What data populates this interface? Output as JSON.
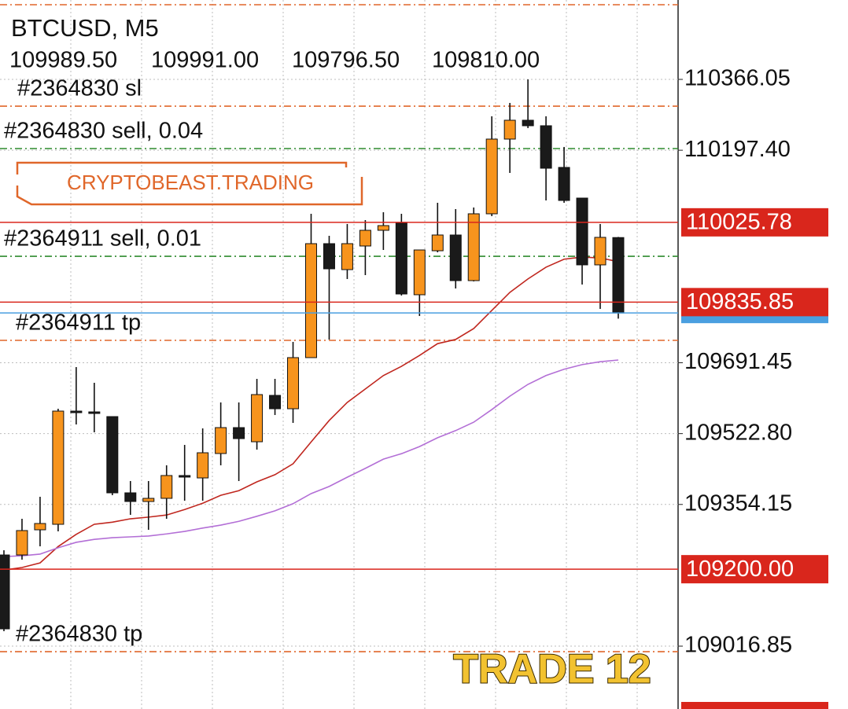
{
  "chart_data": {
    "type": "candlestick",
    "title": "BTCUSD, M5",
    "info": [
      "109989.50",
      "109991.00",
      "109796.50",
      "109810.00"
    ],
    "ylim": [
      108867.2,
      110555.05
    ],
    "yticks": [
      110366.05,
      {
        "value": 110197.4,
        "label": "110197.40"
      },
      109691.45,
      {
        "value": 109522.8,
        "label": "109522.80"
      },
      109354.15,
      109016.85
    ],
    "up_color": "#f7941d",
    "down_color": "#1a1a1a",
    "open": [
      109233.9,
      109233.9,
      109293.8,
      109306.9,
      109576.4,
      109574.5,
      109563.3,
      109381.8,
      109361.2,
      109368.7,
      109423.0,
      109417.3,
      109475.4,
      109537.1,
      109503.4,
      109613.8,
      109582.0,
      109703.7,
      109975.0,
      109913.2,
      109969.4,
      110006.8,
      110023.7,
      109853.4,
      109958.1,
      109995.6,
      109887.0,
      110046.1,
      110223.9,
      110268.8,
      110255.7,
      110156.5,
      110083.5,
      109924.5,
      109989.5
    ],
    "high": [
      109245.1,
      109320.0,
      109372.4,
      109582.0,
      109681.2,
      109643.8,
      109563.3,
      109409.9,
      109409.9,
      109447.3,
      109495.9,
      109535.2,
      109597.0,
      109597.0,
      109653.1,
      109653.1,
      109741.1,
      110046.1,
      109993.7,
      110021.8,
      110031.1,
      110049.8,
      110046.1,
      109960.0,
      110072.3,
      110057.3,
      110061.1,
      110278.2,
      110310.0,
      110366.0,
      110278.2,
      110205.2,
      110083.5,
      110021.8,
      109991.0
    ],
    "low": [
      109052.4,
      109222.7,
      109254.5,
      109290.1,
      109544.6,
      109525.9,
      109376.2,
      109329.4,
      109293.8,
      109320.0,
      109363.1,
      109363.1,
      109447.3,
      109409.9,
      109484.7,
      109567.1,
      109548.3,
      109703.7,
      109746.7,
      109890.8,
      109900.1,
      109960.0,
      109851.5,
      109802.8,
      109954.4,
      109868.3,
      109885.2,
      110040.5,
      110143.4,
      110250.1,
      110077.9,
      110072.3,
      109877.7,
      109819.7,
      109796.5
    ],
    "close": [
      109058.0,
      109292.0,
      109308.8,
      109576.4,
      109574.5,
      109572.7,
      109381.8,
      109361.2,
      109368.7,
      109423.0,
      109421.1,
      109477.2,
      109537.1,
      109510.9,
      109615.7,
      109582.0,
      109703.7,
      109975.0,
      109915.1,
      109975.0,
      110006.8,
      110018.0,
      109855.2,
      109960.0,
      109995.6,
      109887.0,
      110046.1,
      110223.9,
      110268.8,
      110255.7,
      110154.6,
      110077.9,
      109924.5,
      109990.0,
      109810.0
    ],
    "indicators": [
      {
        "color": "#c0271f",
        "values": [
          109198,
          109204,
          109215,
          109254,
          109283,
          109307,
          109312,
          109320,
          109324,
          109329,
          109342,
          109357,
          109376,
          109387,
          109408,
          109425,
          109451,
          109503,
          109554,
          109597,
          109629,
          109661,
          109683,
          109709,
          109737,
          109747,
          109773,
          109816,
          109859,
          109891,
          109919,
          109938,
          109943,
          109941,
          109932
        ]
      },
      {
        "color": "#b36fd6",
        "values": [
          109230,
          109232,
          109236,
          109251,
          109264,
          109271,
          109275,
          109277,
          109279,
          109284,
          109290,
          109298,
          109305,
          109314,
          109326,
          109339,
          109356,
          109380,
          109397,
          109419,
          109440,
          109462,
          109475,
          109492,
          109513,
          109530,
          109550,
          109580,
          109612,
          109640,
          109661,
          109676,
          109687,
          109694,
          109698
        ]
      }
    ],
    "levels": [
      {
        "price": 110543.8,
        "color": "#e0672a"
      },
      {
        "label": "#2364830 sl",
        "price": 110302.4,
        "color": "#e0672a"
      },
      {
        "label": "#2364830 sell, 0.04",
        "price": 110201.4,
        "color": "#2e8b2e"
      },
      {
        "label": "#2364911 sell, 0.01",
        "price": 109945.0,
        "color": "#2e8b2e"
      },
      {
        "label": "#2364911 tp",
        "price": 109744.8,
        "color": "#e0672a"
      },
      {
        "label": "#2364830 tp",
        "price": 109003.7,
        "color": "#e0672a"
      }
    ],
    "price_tags": [
      110025.78,
      109835.85,
      {
        "value": 109200,
        "label": "109200.00"
      }
    ],
    "tag_color": "#d9261c",
    "bid_color": "#4a9fe0",
    "watermarks": [
      "CRYPTOBEAST.TRADING",
      "TRADE 12"
    ]
  }
}
